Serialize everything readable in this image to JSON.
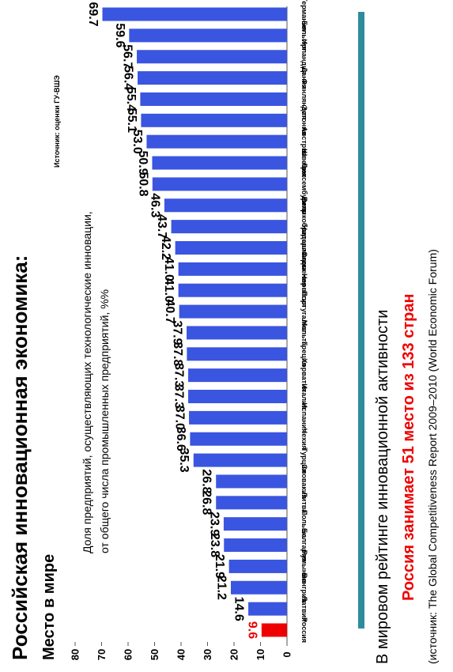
{
  "chart_data": {
    "type": "bar",
    "title": "Российская инновационная экономика:",
    "subtitle": "Место в мире",
    "y_label_lines": [
      "Доля предприятий, осуществляющих технологические инновации,",
      "от общего числа промышленных предприятий, %%"
    ],
    "source_note": "Источник: оценки ГУ-ВШЭ",
    "footer_lines": [
      "В мировом рейтинге инновационной активности",
      "Россия занимает 51 место из 133 стран",
      "(источник: The Global Competitiveness Report 2009–2010 (World Economic Forum)"
    ],
    "categories": [
      "Россия",
      "Латвия",
      "Венгрия",
      "Румыния",
      "Болгария",
      "Польша",
      "Литва",
      "Словакия",
      "Турция",
      "Чехия",
      "Испания",
      "Италия",
      "Хорватия",
      "Греция",
      "Мальта",
      "Португалия",
      "Норвегия",
      "Словения",
      "Нидерланды",
      "Великобритания",
      "Кипр",
      "Люксембург",
      "Швеция",
      "Австрия",
      "Эстония",
      "Финляндия",
      "Дания",
      "Ирландия",
      "Бельгия",
      "Германия"
    ],
    "values": [
      9.6,
      14.6,
      21.2,
      21.9,
      23.8,
      23.9,
      26.8,
      26.8,
      35.3,
      36.6,
      37.0,
      37.3,
      37.3,
      37.8,
      37.9,
      40.7,
      41.0,
      41.0,
      42.2,
      43.7,
      46.3,
      50.8,
      50.9,
      53.0,
      55.1,
      55.4,
      56.4,
      56.7,
      59.6,
      69.7
    ],
    "value_labels": [
      "9.6",
      "14.6",
      "21.2",
      "21.9",
      "23.8",
      "23.9",
      "26.8",
      "26.8",
      "35.3",
      "36.6",
      "37.0",
      "37.3",
      "37.3",
      "37.8",
      "37.9",
      "40.7",
      "41.0",
      "41.0",
      "42.2",
      "43.7",
      "46.3",
      "50.8",
      "50.9",
      "53.0",
      "55.1",
      "55.4",
      "56.4",
      "56.7",
      "59.6",
      "69.7"
    ],
    "color": "#3a55e0",
    "highlight_category": "Россия",
    "highlight_color": "#ee0000",
    "ylim": [
      0,
      80
    ],
    "yticks": [
      0,
      10,
      20,
      30,
      40,
      50,
      60,
      70,
      80
    ]
  }
}
